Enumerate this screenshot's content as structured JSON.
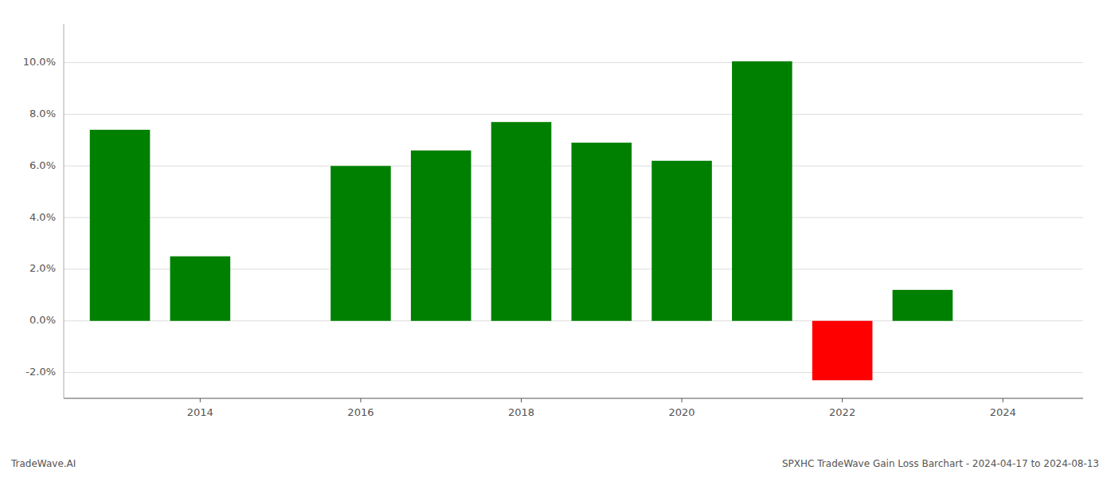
{
  "chart_data": {
    "type": "bar",
    "title": "SPXHC TradeWave Gain Loss Barchart - 2024-04-17 to 2024-08-13",
    "annotations": [
      "TradeWave.AI"
    ],
    "x": [
      2013,
      2014,
      2016,
      2017,
      2018,
      2019,
      2020,
      2021,
      2022,
      2023
    ],
    "values": [
      0.074,
      0.025,
      0.06,
      0.066,
      0.077,
      0.069,
      0.062,
      0.1005,
      -0.023,
      0.012
    ],
    "colors": [
      "#008000",
      "#008000",
      "#008000",
      "#008000",
      "#008000",
      "#008000",
      "#008000",
      "#008000",
      "#ff0000",
      "#008000"
    ],
    "xlim": [
      2012.3,
      2025.0
    ],
    "xticks": [
      2014,
      2016,
      2018,
      2020,
      2022,
      2024
    ],
    "ylim": [
      -0.03,
      0.115
    ],
    "yticks": [
      {
        "value": -0.02,
        "label": "-2.0%"
      },
      {
        "value": 0.0,
        "label": "0.0%"
      },
      {
        "value": 0.02,
        "label": "2.0%"
      },
      {
        "value": 0.04,
        "label": "4.0%"
      },
      {
        "value": 0.06,
        "label": "6.0%"
      },
      {
        "value": 0.08,
        "label": "8.0%"
      },
      {
        "value": 0.1,
        "label": "10.0%"
      }
    ],
    "grid": true
  }
}
